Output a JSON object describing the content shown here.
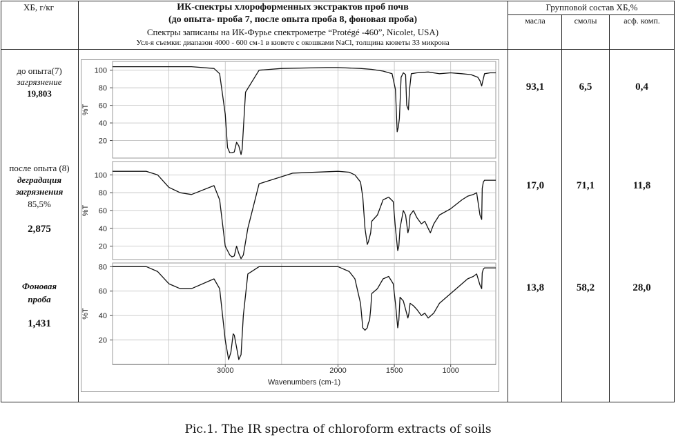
{
  "header": {
    "left_label": "ХБ, г/кг",
    "title_line1": "ИК-спектры хлороформенных экстрактов проб  почв",
    "title_line2": "(до опыта- проба 7, после опыта проба 8, фоновая проба)",
    "title_line3": "Спектры записаны на ИК-Фурье спектрометре “Protégé -460”, Nicolet, USA)",
    "title_line4": "Усл-я съемки: диапазон 4000 - 600 см-1 в кювете с окошками NaCl, толщина кюветы 33 микрона",
    "group_title": "Групповой состав ХБ,%",
    "col_oils": "масла",
    "col_resins": "смолы",
    "col_asph": "асф. комп."
  },
  "rows": [
    {
      "line1": "до опыта(7)",
      "line2": "загрязнение",
      "value": "19,803",
      "oils": "93,1",
      "resins": "6,5",
      "asph": "0,4"
    },
    {
      "line1": "после опыта (8)",
      "line2": "деградация",
      "line3": "загрязнения",
      "line4": "85,5%",
      "value": "2,875",
      "oils": "17,0",
      "resins": "71,1",
      "asph": "11,8"
    },
    {
      "line1": "Фоновая",
      "line2": "проба",
      "value": "1,431",
      "oils": "13,8",
      "resins": "58,2",
      "asph": "28,0"
    }
  ],
  "caption": "Pic.1. The IR spectra of chloroform extracts of soils",
  "colors": {
    "line": "#111111",
    "grid": "#bdbdbd",
    "frame": "#222222"
  },
  "chart_data": [
    {
      "type": "line",
      "xlabel": "Wavenumbers (cm-1)",
      "ylabel": "%T",
      "x_reversed": true,
      "xlim": [
        4000,
        600
      ],
      "ylim": [
        0,
        110
      ],
      "yticks": [
        20,
        40,
        60,
        80,
        100
      ],
      "xticks": [],
      "grid": true,
      "series": [
        {
          "x": [
            4000,
            3600,
            3300,
            3100,
            3050,
            3000,
            2980,
            2960,
            2940,
            2920,
            2900,
            2880,
            2860,
            2850,
            2820,
            2700,
            2500,
            2100,
            2000,
            1800,
            1700,
            1600,
            1520,
            1490,
            1475,
            1465,
            1455,
            1440,
            1420,
            1400,
            1390,
            1375,
            1365,
            1350,
            1300,
            1200,
            1100,
            1000,
            900,
            820,
            760,
            740,
            725,
            720,
            700,
            650,
            600
          ],
          "y": [
            104,
            104,
            104,
            102,
            96,
            50,
            12,
            6,
            6,
            7,
            18,
            14,
            4,
            10,
            75,
            100,
            102,
            103,
            103,
            102,
            101,
            99,
            96,
            78,
            30,
            35,
            45,
            92,
            97,
            95,
            60,
            55,
            78,
            96,
            97,
            98,
            96,
            97,
            96,
            95,
            92,
            88,
            82,
            85,
            96,
            97,
            97
          ]
        }
      ]
    },
    {
      "type": "line",
      "xlabel": "Wavenumbers (cm-1)",
      "ylabel": "%T",
      "x_reversed": true,
      "xlim": [
        4000,
        600
      ],
      "ylim": [
        5,
        115
      ],
      "yticks": [
        20,
        40,
        60,
        80,
        100
      ],
      "xticks": [],
      "grid": true,
      "series": [
        {
          "x": [
            4000,
            3700,
            3600,
            3500,
            3400,
            3300,
            3100,
            3050,
            3000,
            2960,
            2940,
            2920,
            2900,
            2880,
            2860,
            2840,
            2800,
            2700,
            2400,
            2000,
            1900,
            1850,
            1800,
            1780,
            1760,
            1740,
            1730,
            1720,
            1710,
            1700,
            1650,
            1600,
            1550,
            1510,
            1490,
            1470,
            1460,
            1450,
            1420,
            1400,
            1380,
            1370,
            1360,
            1330,
            1300,
            1260,
            1230,
            1200,
            1180,
            1150,
            1100,
            1000,
            900,
            850,
            800,
            770,
            740,
            725,
            720,
            710,
            700,
            650,
            600
          ],
          "y": [
            104,
            104,
            100,
            86,
            80,
            78,
            88,
            72,
            20,
            10,
            8,
            9,
            20,
            12,
            6,
            10,
            40,
            90,
            102,
            104,
            103,
            100,
            92,
            75,
            40,
            22,
            25,
            30,
            35,
            48,
            55,
            72,
            75,
            70,
            40,
            15,
            20,
            40,
            60,
            55,
            35,
            40,
            55,
            60,
            52,
            45,
            48,
            40,
            35,
            45,
            55,
            62,
            72,
            76,
            78,
            80,
            55,
            50,
            85,
            92,
            94,
            94,
            94
          ]
        }
      ]
    },
    {
      "type": "line",
      "xlabel": "Wavenumbers (cm-1)",
      "ylabel": "%T",
      "x_reversed": true,
      "xlim": [
        4000,
        600
      ],
      "ylim": [
        0,
        83
      ],
      "yticks": [
        20,
        40,
        60,
        80
      ],
      "xticks": [
        1000,
        1500,
        2000,
        3000
      ],
      "grid": true,
      "series": [
        {
          "x": [
            4000,
            3700,
            3600,
            3500,
            3400,
            3300,
            3100,
            3050,
            3000,
            2970,
            2950,
            2930,
            2920,
            2900,
            2880,
            2860,
            2840,
            2800,
            2700,
            2400,
            2000,
            1900,
            1850,
            1800,
            1780,
            1760,
            1740,
            1730,
            1720,
            1710,
            1700,
            1650,
            1600,
            1550,
            1510,
            1490,
            1470,
            1460,
            1450,
            1420,
            1400,
            1380,
            1370,
            1360,
            1330,
            1300,
            1260,
            1230,
            1200,
            1150,
            1100,
            1000,
            900,
            850,
            800,
            770,
            740,
            725,
            720,
            710,
            700,
            650,
            600
          ],
          "y": [
            80,
            80,
            76,
            66,
            62,
            62,
            70,
            62,
            20,
            4,
            10,
            25,
            24,
            14,
            4,
            8,
            40,
            74,
            80,
            80,
            80,
            76,
            70,
            50,
            30,
            28,
            30,
            34,
            36,
            45,
            58,
            62,
            70,
            72,
            66,
            50,
            30,
            36,
            55,
            52,
            45,
            38,
            42,
            50,
            48,
            45,
            40,
            42,
            38,
            42,
            50,
            58,
            66,
            70,
            72,
            74,
            65,
            62,
            75,
            78,
            79,
            79,
            79
          ]
        }
      ]
    }
  ]
}
